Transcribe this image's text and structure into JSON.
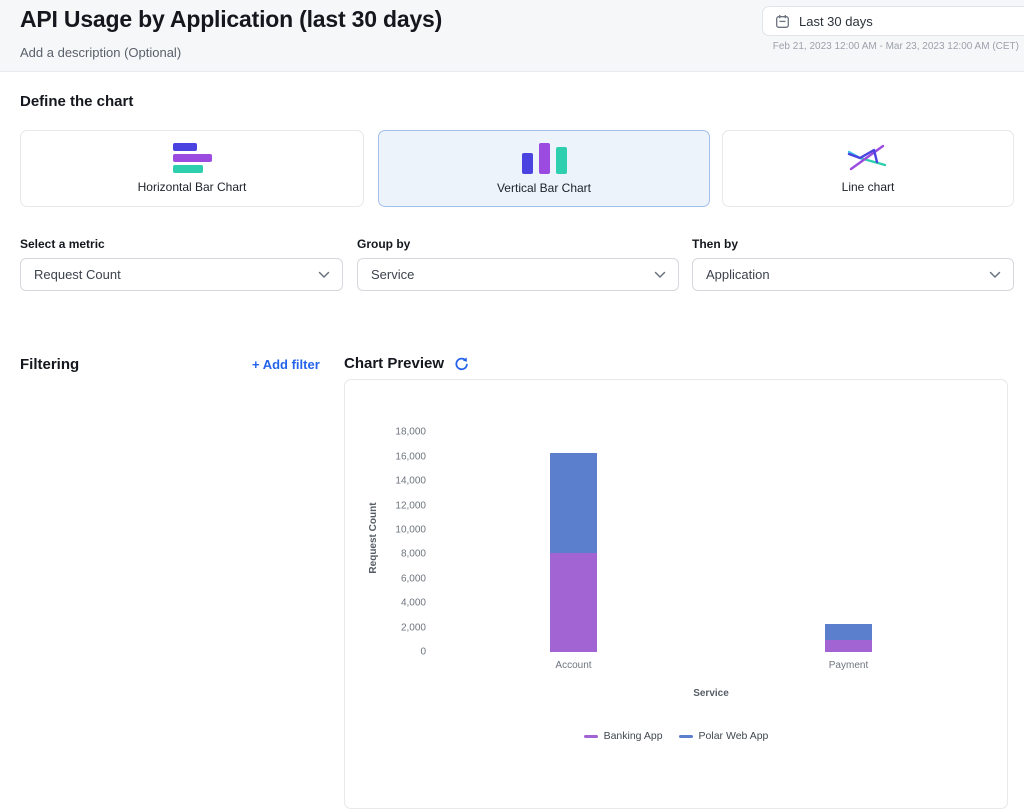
{
  "page": {
    "title": "API Usage by Application (last 30 days)",
    "description": "Add a description (Optional)"
  },
  "date_picker": {
    "label": "Last 30 days",
    "range_detail": "Feb 21, 2023 12:00 AM - Mar 23, 2023 12:00 AM (CET)"
  },
  "define_chart": {
    "heading": "Define the chart",
    "chart_types": [
      {
        "label": "Horizontal Bar Chart",
        "selected": false
      },
      {
        "label": "Vertical Bar Chart",
        "selected": true
      },
      {
        "label": "Line chart",
        "selected": false
      }
    ],
    "metric_label": "Select a metric",
    "metric_value": "Request Count",
    "group_by_label": "Group by",
    "group_by_value": "Service",
    "then_by_label": "Then by",
    "then_by_value": "Application"
  },
  "filtering": {
    "heading": "Filtering",
    "add_filter": "+ Add filter"
  },
  "preview": {
    "heading": "Chart Preview"
  },
  "chart_data": {
    "type": "bar",
    "stacked": true,
    "categories": [
      "Account",
      "Payment"
    ],
    "series": [
      {
        "name": "Banking App",
        "color": "#a263d3",
        "values": [
          8100,
          1000
        ]
      },
      {
        "name": "Polar Web App",
        "color": "#5b7ecd",
        "values": [
          8200,
          1300
        ]
      }
    ],
    "xlabel": "Service",
    "ylabel": "Request Count",
    "ylim": [
      0,
      18000
    ],
    "ytick_step": 2000,
    "grid": false,
    "legend_position": "bottom"
  },
  "colors": {
    "accent_blue": "#2563eb",
    "selected_card_bg": "#edf3fb",
    "selected_card_border": "#a3c0e8",
    "icon_indigo": "#4b43e0",
    "icon_purple": "#9b4be0",
    "icon_teal": "#2ecfae",
    "icon_cyan": "#3ec1e8"
  }
}
